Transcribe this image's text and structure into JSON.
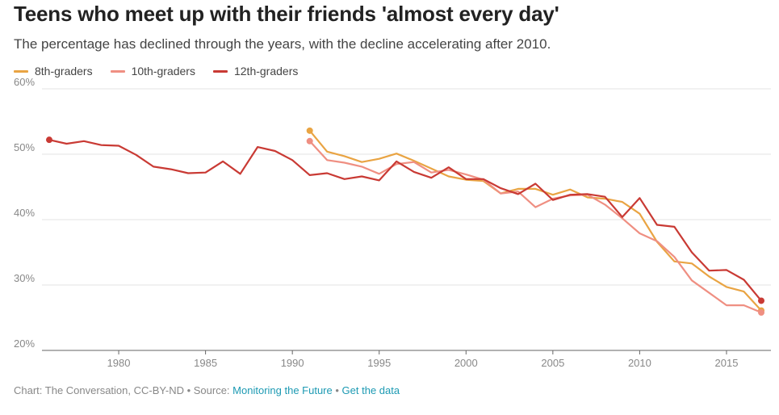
{
  "title": "Teens who meet up with their friends 'almost every day'",
  "subtitle": "The percentage has declined through the years, with the decline accelerating after 2010.",
  "footer": {
    "prefix": "Chart: The Conversation, CC-BY-ND • Source: ",
    "source_link": "Monitoring the Future",
    "separator": " • ",
    "data_link": "Get the data"
  },
  "colors": {
    "8th-graders": "#e9a443",
    "10th-graders": "#ef8f82",
    "12th-graders": "#c93a34"
  },
  "chart_data": {
    "type": "line",
    "xlim": [
      1976,
      2017
    ],
    "ylim": [
      20,
      60
    ],
    "yticks": [
      20,
      30,
      40,
      50,
      60
    ],
    "ytick_labels": [
      "20%",
      "30%",
      "40%",
      "50%",
      "60%"
    ],
    "xticks": [
      1980,
      1985,
      1990,
      1995,
      2000,
      2005,
      2010,
      2015
    ],
    "xtick_labels": [
      "1980",
      "1985",
      "1990",
      "1995",
      "2000",
      "2005",
      "2010",
      "2015"
    ],
    "grid": true,
    "legend": "top-left",
    "series": [
      {
        "name": "8th-graders",
        "x": [
          1991,
          1992,
          1993,
          1994,
          1995,
          1996,
          1997,
          1998,
          1999,
          2000,
          2001,
          2002,
          2003,
          2004,
          2005,
          2006,
          2007,
          2008,
          2009,
          2010,
          2011,
          2012,
          2013,
          2014,
          2015,
          2016,
          2017
        ],
        "values": [
          53.6,
          50.4,
          49.7,
          48.8,
          49.3,
          50.1,
          49.0,
          47.8,
          46.6,
          46.1,
          45.9,
          44.0,
          44.7,
          44.7,
          43.8,
          44.6,
          43.4,
          43.2,
          42.7,
          40.9,
          36.6,
          33.6,
          33.3,
          31.3,
          29.7,
          29.0,
          26.1
        ]
      },
      {
        "name": "10th-graders",
        "x": [
          1991,
          1992,
          1993,
          1994,
          1995,
          1996,
          1997,
          1998,
          1999,
          2000,
          2001,
          2002,
          2003,
          2004,
          2005,
          2006,
          2007,
          2008,
          2009,
          2010,
          2011,
          2012,
          2013,
          2014,
          2015,
          2016,
          2017
        ],
        "values": [
          52.0,
          49.1,
          48.7,
          48.1,
          47.0,
          48.5,
          48.8,
          47.2,
          47.6,
          46.9,
          46.1,
          44.0,
          44.3,
          41.9,
          43.2,
          43.7,
          43.8,
          42.3,
          40.2,
          37.9,
          36.7,
          34.3,
          30.7,
          28.8,
          26.9,
          26.9,
          25.8
        ]
      },
      {
        "name": "12th-graders",
        "x": [
          1976,
          1977,
          1978,
          1979,
          1980,
          1981,
          1982,
          1983,
          1984,
          1985,
          1986,
          1987,
          1988,
          1989,
          1990,
          1991,
          1992,
          1993,
          1994,
          1995,
          1996,
          1997,
          1998,
          1999,
          2000,
          2001,
          2002,
          2003,
          2004,
          2005,
          2006,
          2007,
          2008,
          2009,
          2010,
          2011,
          2012,
          2013,
          2014,
          2015,
          2016,
          2017
        ],
        "values": [
          52.2,
          51.6,
          52.0,
          51.4,
          51.3,
          49.9,
          48.1,
          47.7,
          47.1,
          47.2,
          48.9,
          47.0,
          51.1,
          50.5,
          49.1,
          46.8,
          47.1,
          46.2,
          46.6,
          46.0,
          48.9,
          47.3,
          46.4,
          48.0,
          46.2,
          46.2,
          44.8,
          43.9,
          45.5,
          43.0,
          43.8,
          43.9,
          43.5,
          40.4,
          43.3,
          39.2,
          38.9,
          35.0,
          32.2,
          32.3,
          30.8,
          27.6
        ]
      }
    ]
  }
}
